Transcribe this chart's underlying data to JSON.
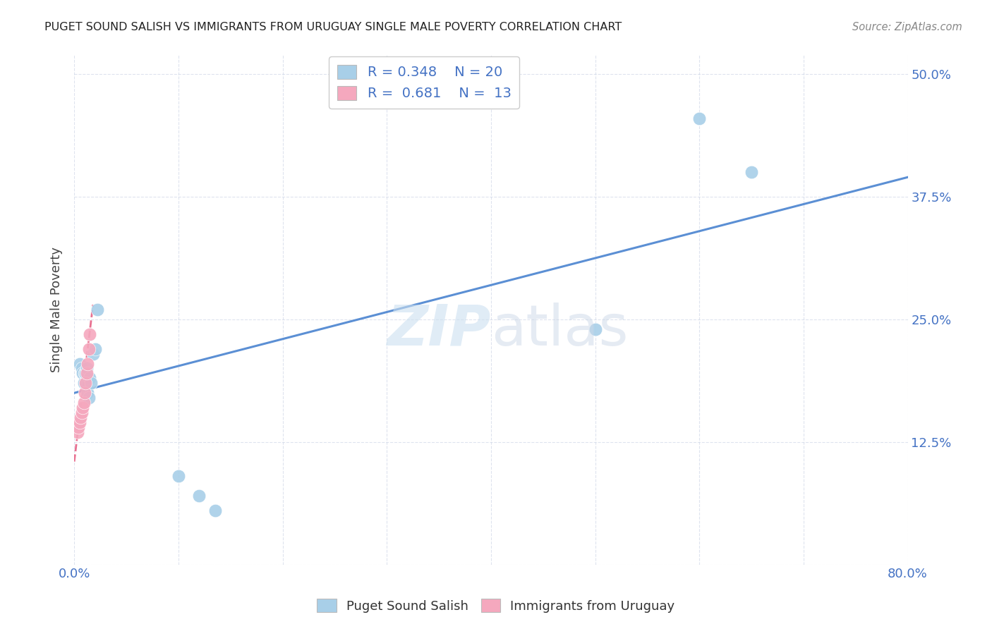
{
  "title": "PUGET SOUND SALISH VS IMMIGRANTS FROM URUGUAY SINGLE MALE POVERTY CORRELATION CHART",
  "source": "Source: ZipAtlas.com",
  "ylabel": "Single Male Poverty",
  "xlim": [
    0.0,
    0.8
  ],
  "ylim": [
    0.0,
    0.52
  ],
  "xticks": [
    0.0,
    0.1,
    0.2,
    0.3,
    0.4,
    0.5,
    0.6,
    0.7,
    0.8
  ],
  "xticklabels": [
    "0.0%",
    "",
    "",
    "",
    "",
    "",
    "",
    "",
    "80.0%"
  ],
  "ytick_positions": [
    0.0,
    0.125,
    0.25,
    0.375,
    0.5
  ],
  "ytick_labels": [
    "",
    "12.5%",
    "25.0%",
    "37.5%",
    "50.0%"
  ],
  "legend1_R": "0.348",
  "legend1_N": "20",
  "legend2_R": "0.681",
  "legend2_N": "13",
  "color_blue": "#a8cfe8",
  "color_pink": "#f5a8be",
  "line_blue": "#5b8fd4",
  "line_pink": "#e87090",
  "blue_scatter_x": [
    0.005,
    0.007,
    0.008,
    0.009,
    0.01,
    0.011,
    0.012,
    0.013,
    0.014,
    0.015,
    0.016,
    0.018,
    0.02,
    0.022,
    0.1,
    0.12,
    0.135,
    0.5,
    0.6,
    0.65
  ],
  "blue_scatter_y": [
    0.205,
    0.2,
    0.195,
    0.185,
    0.195,
    0.195,
    0.2,
    0.175,
    0.17,
    0.19,
    0.185,
    0.215,
    0.22,
    0.26,
    0.09,
    0.07,
    0.055,
    0.24,
    0.455,
    0.4
  ],
  "pink_scatter_x": [
    0.003,
    0.004,
    0.005,
    0.006,
    0.007,
    0.008,
    0.009,
    0.01,
    0.011,
    0.012,
    0.013,
    0.014,
    0.015
  ],
  "pink_scatter_y": [
    0.135,
    0.14,
    0.145,
    0.15,
    0.155,
    0.16,
    0.165,
    0.175,
    0.185,
    0.195,
    0.205,
    0.22,
    0.235
  ],
  "blue_line_x": [
    0.0,
    0.8
  ],
  "blue_line_y": [
    0.175,
    0.395
  ],
  "pink_line_x": [
    0.0,
    0.018
  ],
  "pink_line_y": [
    0.105,
    0.265
  ],
  "legend_labels": [
    "Puget Sound Salish",
    "Immigrants from Uruguay"
  ]
}
